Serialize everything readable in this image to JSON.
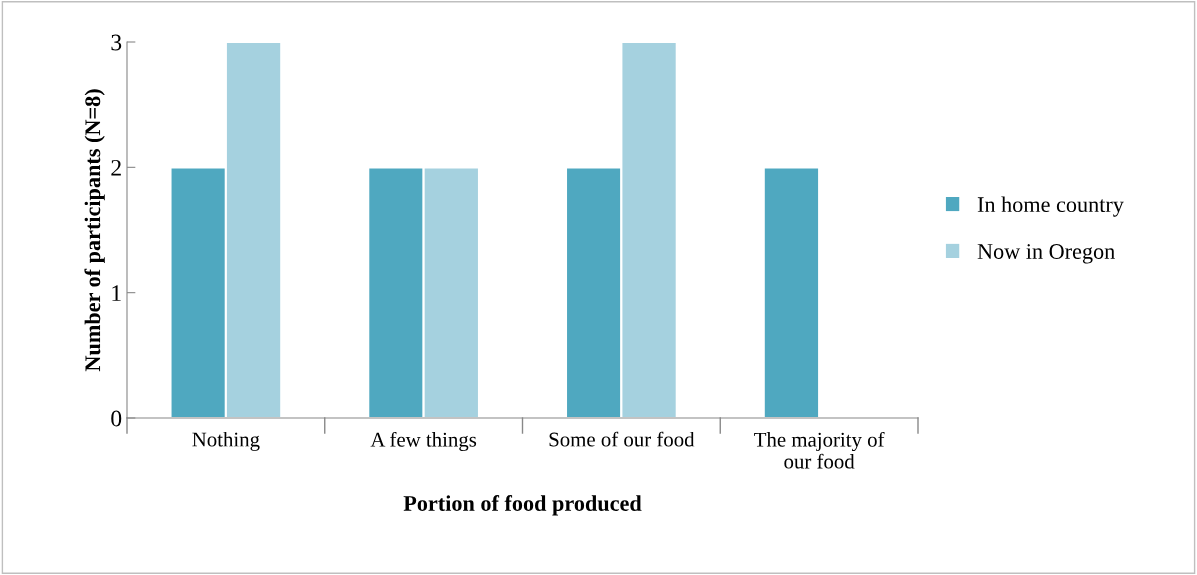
{
  "chart_data": {
    "type": "bar",
    "xlabel": "Portion of food produced",
    "ylabel": "Number of participants (N=8)",
    "categories": [
      "Nothing",
      "A few things",
      "Some of our food",
      "The majority of\nour food"
    ],
    "series": [
      {
        "name": "In home country",
        "color": "#4fa8c0",
        "values": [
          2,
          2,
          2,
          2
        ]
      },
      {
        "name": "Now in Oregon",
        "color": "#a5d1df",
        "values": [
          3,
          2,
          3,
          null
        ]
      }
    ],
    "ylim": [
      0,
      3
    ],
    "yticks": [
      0,
      1,
      2,
      3
    ],
    "grid": false,
    "legend": "right"
  }
}
